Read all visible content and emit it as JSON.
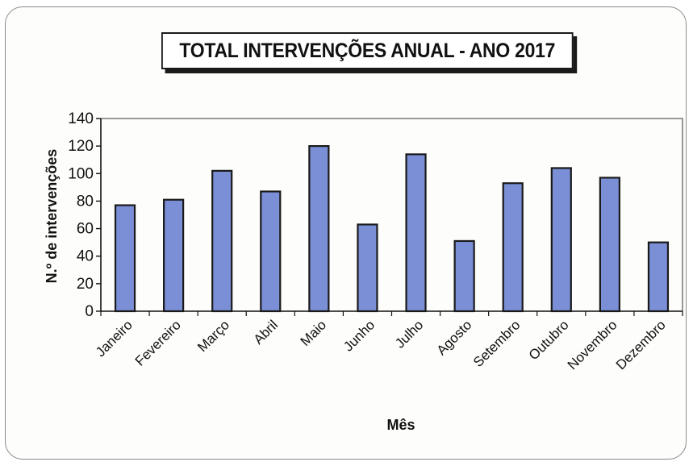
{
  "chart_data": {
    "type": "bar",
    "title": "TOTAL INTERVENÇÕES ANUAL - ANO 2017",
    "xlabel": "Mês",
    "ylabel": "N.º de intervenções",
    "categories": [
      "Janeiro",
      "Fevereiro",
      "Março",
      "Abril",
      "Maio",
      "Junho",
      "Julho",
      "Agosto",
      "Setembro",
      "Outubro",
      "Novembro",
      "Dezembro"
    ],
    "values": [
      77,
      81,
      102,
      87,
      120,
      63,
      114,
      51,
      93,
      104,
      97,
      50
    ],
    "ylim": [
      0,
      140
    ],
    "yticks": [
      0,
      20,
      40,
      60,
      80,
      100,
      120,
      140
    ],
    "grid": false,
    "legend": "none",
    "bar_color": "#7b8fd6",
    "bar_edge_color": "#1a1a1a"
  }
}
